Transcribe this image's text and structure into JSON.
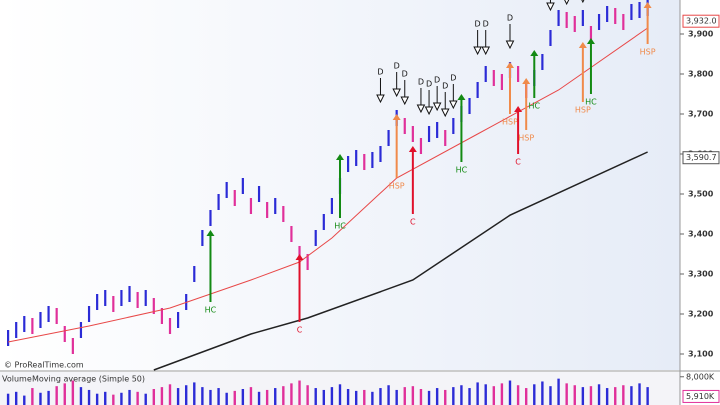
{
  "chart_data": {
    "type": "ohlc",
    "ylim": [
      3060,
      3985
    ],
    "yticks": [
      {
        "value": 3100,
        "label": "3,100"
      },
      {
        "value": 3200,
        "label": "3,200"
      },
      {
        "value": 3300,
        "label": "3,300"
      },
      {
        "value": 3400,
        "label": "3,400"
      },
      {
        "value": 3500,
        "label": "3,500"
      },
      {
        "value": 3600,
        "label": "3,600"
      },
      {
        "value": 3700,
        "label": "3,700"
      },
      {
        "value": 3800,
        "label": "3,800"
      },
      {
        "value": 3900,
        "label": "3,900"
      }
    ],
    "xlim": [
      -1,
      83
    ],
    "up_color": "#2b2bd6",
    "down_color": "#e0309a",
    "high": [
      3160,
      3180,
      3195,
      3190,
      3205,
      3220,
      3215,
      3170,
      3140,
      3180,
      3220,
      3250,
      3260,
      3245,
      3260,
      3270,
      3255,
      3260,
      3240,
      3215,
      3190,
      3205,
      3250,
      3320,
      3410,
      3460,
      3500,
      3530,
      3510,
      3540,
      3490,
      3520,
      3480,
      3490,
      3470,
      3420,
      3370,
      3350,
      3410,
      3450,
      3490,
      3540,
      3595,
      3610,
      3600,
      3605,
      3620,
      3660,
      3710,
      3690,
      3670,
      3640,
      3670,
      3680,
      3660,
      3690,
      3720,
      3740,
      3780,
      3820,
      3810,
      3800,
      3830,
      3820,
      3780,
      3810,
      3850,
      3910,
      3960,
      3955,
      3945,
      3960,
      3920,
      3950,
      3970,
      3965,
      3950,
      3975,
      3980,
      3985
    ],
    "low": [
      3120,
      3140,
      3155,
      3150,
      3165,
      3180,
      3175,
      3130,
      3100,
      3140,
      3180,
      3210,
      3220,
      3205,
      3220,
      3230,
      3215,
      3220,
      3200,
      3175,
      3150,
      3165,
      3210,
      3280,
      3370,
      3420,
      3460,
      3490,
      3470,
      3500,
      3450,
      3480,
      3440,
      3450,
      3430,
      3380,
      3330,
      3310,
      3370,
      3410,
      3450,
      3500,
      3555,
      3570,
      3560,
      3565,
      3580,
      3620,
      3670,
      3650,
      3630,
      3600,
      3630,
      3640,
      3620,
      3650,
      3680,
      3700,
      3740,
      3780,
      3770,
      3760,
      3790,
      3780,
      3740,
      3770,
      3810,
      3870,
      3920,
      3915,
      3905,
      3920,
      3880,
      3910,
      3930,
      3925,
      3910,
      3935,
      3940,
      3945
    ],
    "ma_lines": [
      {
        "color": "#e84848",
        "x": [
          0,
          10,
          20,
          30,
          36,
          40,
          48,
          58,
          68,
          79
        ],
        "values": [
          3130,
          3170,
          3215,
          3285,
          3330,
          3390,
          3540,
          3650,
          3760,
          3915
        ]
      },
      {
        "color": "#222222",
        "x": [
          18,
          30,
          37,
          50,
          62,
          79
        ],
        "values": [
          3060,
          3150,
          3190,
          3285,
          3447,
          3605
        ]
      }
    ],
    "signal_colors": {
      "HC": "#138a13",
      "C": "#e0102a",
      "HSP": "#f08a4a"
    },
    "signals": [
      {
        "label": "HC",
        "x": 25,
        "from": 3230,
        "to": 3410
      },
      {
        "label": "C",
        "x": 36,
        "from": 3180,
        "to": 3350
      },
      {
        "label": "HC",
        "x": 41,
        "from": 3440,
        "to": 3600
      },
      {
        "label": "HSP",
        "x": 48,
        "from": 3540,
        "to": 3700
      },
      {
        "label": "C",
        "x": 50,
        "from": 3450,
        "to": 3620
      },
      {
        "label": "HC",
        "x": 56,
        "from": 3580,
        "to": 3750
      },
      {
        "label": "HSP",
        "x": 62,
        "from": 3700,
        "to": 3830
      },
      {
        "label": "C",
        "x": 63,
        "from": 3600,
        "to": 3720
      },
      {
        "label": "HSP",
        "x": 64,
        "from": 3660,
        "to": 3790
      },
      {
        "label": "HC",
        "x": 65,
        "from": 3740,
        "to": 3860
      },
      {
        "label": "HSP",
        "x": 71,
        "from": 3730,
        "to": 3880
      },
      {
        "label": "HC",
        "x": 72,
        "from": 3750,
        "to": 3890
      },
      {
        "label": "HSP",
        "x": 79,
        "from": 3875,
        "to": 3980
      }
    ],
    "d_markers": [
      {
        "label": "D",
        "x": 46,
        "value": 3730
      },
      {
        "label": "D",
        "x": 48,
        "value": 3745
      },
      {
        "label": "D",
        "x": 49,
        "value": 3725
      },
      {
        "label": "D",
        "x": 51,
        "value": 3705
      },
      {
        "label": "D",
        "x": 52,
        "value": 3700
      },
      {
        "label": "D",
        "x": 53,
        "value": 3710
      },
      {
        "label": "D",
        "x": 54,
        "value": 3695
      },
      {
        "label": "D",
        "x": 55,
        "value": 3715
      },
      {
        "label": "D",
        "x": 58,
        "value": 3850
      },
      {
        "label": "D",
        "x": 59,
        "value": 3850
      },
      {
        "label": "D",
        "x": 62,
        "value": 3865
      },
      {
        "label": "D",
        "x": 67,
        "value": 3960
      },
      {
        "label": "D",
        "x": 69,
        "value": 3975
      },
      {
        "label": "D",
        "x": 71,
        "value": 3980
      }
    ],
    "price_tags": [
      {
        "value": 3932.0,
        "label": "3,932.0",
        "color": "#e84848"
      },
      {
        "value": 3590.7,
        "label": "3,590.7",
        "color": "#555555"
      }
    ],
    "credit": "© ProRealTime.com",
    "volume": {
      "title": "Volume",
      "subtitle": "Moving average (Simple 50)",
      "ylim": [
        5000,
        8400
      ],
      "yticks": [
        {
          "value": 8000,
          "label": "8,000K"
        }
      ],
      "tag": {
        "value": 5910,
        "label": "5,910K"
      },
      "values": [
        6200,
        6400,
        6000,
        6800,
        6300,
        6500,
        7000,
        7300,
        7600,
        6900,
        6600,
        6200,
        6400,
        6100,
        6300,
        6600,
        6400,
        6200,
        6700,
        6900,
        7200,
        6800,
        7100,
        7400,
        6900,
        6600,
        6800,
        6300,
        6500,
        6700,
        6900,
        6400,
        6600,
        6800,
        7000,
        7300,
        7600,
        7100,
        6800,
        6600,
        6900,
        7200,
        6700,
        6500,
        6600,
        6400,
        6800,
        7100,
        6600,
        6900,
        7000,
        6700,
        6500,
        6800,
        6600,
        6900,
        7100,
        6800,
        7400,
        7200,
        7000,
        7300,
        7600,
        7100,
        6800,
        7200,
        7500,
        7000,
        7800,
        7300,
        7100,
        6900,
        7000,
        7200,
        6800,
        6900,
        7100,
        7000,
        7300,
        6900
      ]
    }
  }
}
